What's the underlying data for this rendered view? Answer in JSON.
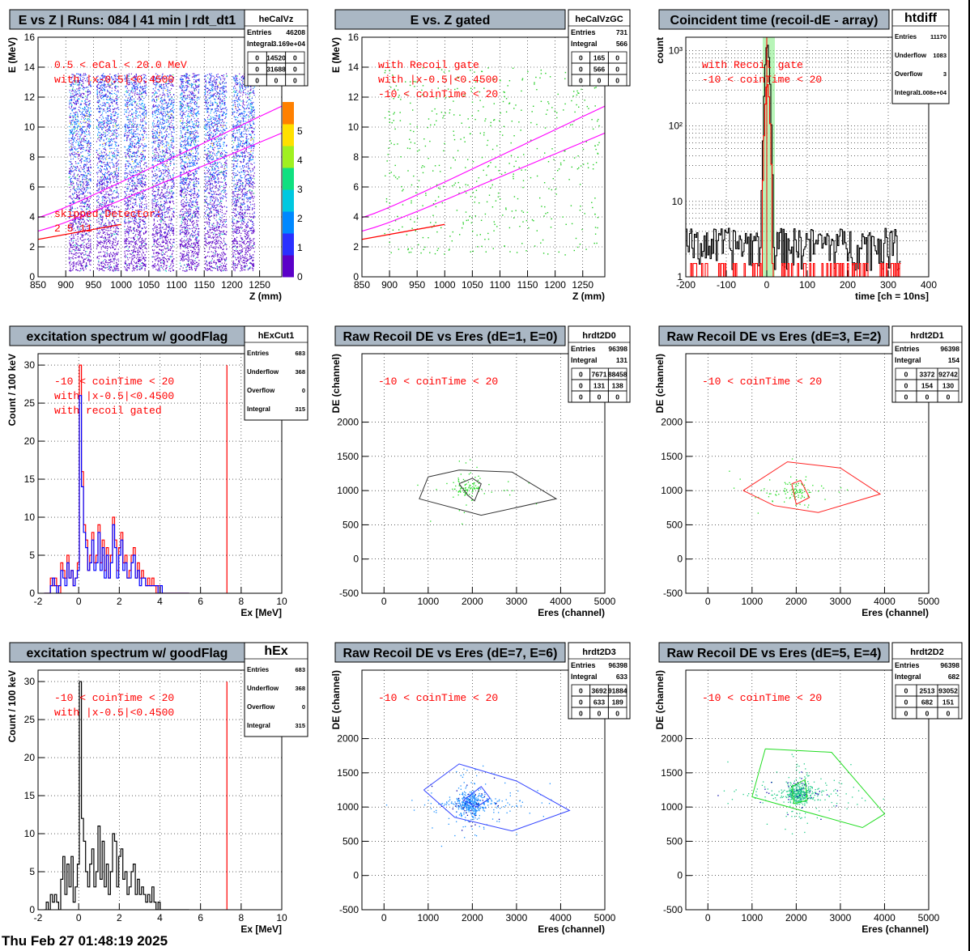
{
  "footer": {
    "timestamp": "Thu Feb 27 01:48:19 2025"
  },
  "colors": {
    "title_bg": "#aab7c4",
    "stat_bg": "#ffffff",
    "red": "#ff0000",
    "blue": "#0000ff",
    "green": "#00cc00",
    "magenta": "#ff00ff",
    "black": "#000000",
    "coin_band": "#88ee88"
  },
  "panels": [
    {
      "title": "E vs Z | Runs: 084 | 41 min | rdt_dt1",
      "stats": {
        "name": "heCalVz",
        "rows": [
          [
            "Entries",
            "46208"
          ],
          [
            "Integral",
            "3.169e+04"
          ]
        ],
        "grid": [
          [
            "0",
            "14520",
            "0"
          ],
          [
            "0",
            "31688",
            "0"
          ],
          [
            "0",
            "0",
            "0"
          ]
        ]
      },
      "annotations": [
        "0.5 < eCal < 20.0 MeV",
        "with |x-0.5|<0.4500",
        "skipped Detector:",
        "2   5   11"
      ],
      "chart_data": {
        "type": "heatmap",
        "xlabel": "Z (mm)",
        "ylabel": "E (MeV)",
        "xlim": [
          850,
          1290
        ],
        "ylim": [
          0,
          16
        ],
        "xticks": [
          850,
          900,
          950,
          1000,
          1050,
          1100,
          1150,
          1200,
          1250
        ],
        "yticks": [
          0,
          2,
          4,
          6,
          8,
          10,
          12,
          14,
          16
        ],
        "zlim": [
          0,
          6
        ],
        "zticks": [
          0,
          1,
          2,
          3,
          4,
          5
        ],
        "bands_z": [
          [
            905,
            945
          ],
          [
            955,
            995
          ],
          [
            1005,
            1045
          ],
          [
            1055,
            1095
          ],
          [
            1105,
            1140
          ],
          [
            1150,
            1190
          ],
          [
            1200,
            1240
          ]
        ],
        "kinematic_lines": [
          [
            [
              850,
              3.7
            ],
            [
              1290,
              11.4
            ]
          ],
          [
            [
              850,
              2.8
            ],
            [
              1290,
              9.6
            ]
          ]
        ],
        "red_line": [
          [
            850,
            2.5
          ],
          [
            1000,
            3.5
          ]
        ]
      }
    },
    {
      "title": "E vs. Z gated",
      "stats": {
        "name": "heCalVzGC",
        "rows": [
          [
            "Entries",
            "731"
          ],
          [
            "Integral",
            "566"
          ]
        ],
        "grid": [
          [
            "0",
            "165",
            "0"
          ],
          [
            "0",
            "566",
            "0"
          ],
          [
            "0",
            "0",
            "0"
          ]
        ]
      },
      "annotations": [
        "with Recoil gate",
        "with |x-0.5|<0.4500",
        "-10 < coinTime < 20"
      ],
      "chart_data": {
        "type": "scatter",
        "xlabel": "Z (mm)",
        "ylabel": "E (MeV)",
        "xlim": [
          850,
          1290
        ],
        "ylim": [
          0,
          16
        ],
        "xticks": [
          850,
          900,
          950,
          1000,
          1050,
          1100,
          1150,
          1200,
          1250
        ],
        "yticks": [
          0,
          2,
          4,
          6,
          8,
          10,
          12,
          14,
          16
        ],
        "kinematic_lines": [
          [
            [
              850,
              3.7
            ],
            [
              1290,
              11.4
            ]
          ],
          [
            [
              850,
              2.8
            ],
            [
              1290,
              9.6
            ]
          ]
        ],
        "red_line": [
          [
            850,
            2.5
          ],
          [
            1000,
            3.5
          ]
        ]
      }
    },
    {
      "title": "Coincident time (recoil-dE - array)",
      "stats": {
        "name": "htdiff",
        "rows": [
          [
            "Entries",
            "11170"
          ],
          [
            "Underflow",
            "1083"
          ],
          [
            "Overflow",
            "3"
          ],
          [
            "Integral",
            "1.008e+04"
          ]
        ],
        "grid": []
      },
      "annotations": [
        "with Recoil gate",
        "-10 < coinTime < 20"
      ],
      "chart_data": {
        "type": "line",
        "xlabel": "time [ch = 10ns]",
        "ylabel": "count",
        "xlim": [
          -200,
          400
        ],
        "ylim": [
          1,
          1500
        ],
        "log_y": true,
        "xticks": [
          -200,
          -100,
          0,
          100,
          200,
          300,
          400
        ],
        "ytick_labels": [
          "1",
          "10",
          "10²",
          "10³"
        ],
        "gate": [
          -10,
          20
        ]
      }
    },
    {
      "title": "excitation spectrum w/ goodFlag",
      "stats": {
        "name": "hExCut1",
        "rows": [
          [
            "Entries",
            "683"
          ],
          [
            "Underflow",
            "368"
          ],
          [
            "Overflow",
            "0"
          ],
          [
            "Integral",
            "315"
          ]
        ],
        "grid": []
      },
      "annotations": [
        "-10 < coinTime < 20",
        "with |x-0.5|<0.4500",
        "with recoil gated"
      ],
      "chart_data": {
        "type": "bar",
        "xlabel": "Ex [MeV]",
        "ylabel": "Count / 100 keV",
        "xlim": [
          -2,
          10
        ],
        "ylim": [
          0,
          31.5
        ],
        "xticks": [
          -2,
          0,
          2,
          4,
          6,
          8,
          10
        ],
        "yticks": [
          0,
          5,
          10,
          15,
          20,
          25,
          30
        ],
        "marker_x": 7.3,
        "series": [
          {
            "values": [
              0,
              0,
              0,
              2,
              1,
              2,
              1,
              0,
              4,
              3,
              2,
              5,
              2,
              3,
              1,
              2,
              4,
              30,
              16,
              9,
              7,
              3,
              5,
              8,
              4,
              5,
              9,
              4,
              7,
              3,
              6,
              2,
              5,
              10,
              7,
              3,
              6,
              8,
              4,
              5,
              2,
              3,
              5,
              6,
              2,
              4,
              2,
              3,
              2,
              1,
              2,
              1,
              2,
              1,
              0,
              1,
              0,
              0,
              0,
              0,
              0,
              0,
              0,
              0,
              0,
              0,
              0,
              0,
              0,
              0
            ]
          },
          {
            "values": [
              0,
              0,
              0,
              1,
              2,
              1,
              0,
              1,
              3,
              2,
              1,
              4,
              2,
              3,
              1,
              2,
              3,
              26,
              14,
              8,
              6,
              3,
              4,
              7,
              3,
              4,
              8,
              3,
              6,
              2,
              5,
              2,
              4,
              9,
              6,
              2,
              5,
              7,
              3,
              4,
              2,
              2,
              4,
              5,
              2,
              3,
              1,
              2,
              2,
              1,
              1,
              1,
              1,
              1,
              1,
              0,
              1,
              0,
              0,
              0,
              0,
              0,
              0,
              0,
              0,
              0,
              0,
              0,
              0,
              0
            ]
          }
        ]
      }
    },
    {
      "title": "Raw Recoil DE vs Eres (dE=1, E=0)",
      "stats": {
        "name": "hrdt2D0",
        "rows": [
          [
            "Entries",
            "96398"
          ],
          [
            "Integral",
            "131"
          ]
        ],
        "grid": [
          [
            "0",
            "7671",
            "88458"
          ],
          [
            "0",
            "131",
            "138"
          ],
          [
            "0",
            "0",
            "0"
          ]
        ]
      },
      "annotations": [
        "-10 < coinTime < 20"
      ],
      "chart_data": {
        "type": "scatter",
        "xlabel": "Eres (channel)",
        "ylabel": "DE (channel)",
        "xlim": [
          -500,
          5000
        ],
        "ylim": [
          -500,
          3000
        ],
        "xticks": [
          0,
          1000,
          2000,
          3000,
          4000,
          5000
        ],
        "yticks": [
          -500,
          0,
          500,
          1000,
          1500,
          2000
        ],
        "center": [
          1900,
          1050
        ],
        "outer_cut": [
          [
            1000,
            1200
          ],
          [
            1700,
            1300
          ],
          [
            2900,
            1270
          ],
          [
            3900,
            880
          ],
          [
            2200,
            640
          ],
          [
            800,
            880
          ]
        ],
        "inner_cut": [
          [
            1700,
            1100
          ],
          [
            2000,
            1180
          ],
          [
            2200,
            1100
          ],
          [
            2050,
            850
          ],
          [
            1900,
            930
          ]
        ]
      }
    },
    {
      "title": "Raw Recoil DE vs Eres (dE=3, E=2)",
      "stats": {
        "name": "hrdt2D1",
        "rows": [
          [
            "Entries",
            "96398"
          ],
          [
            "Integral",
            "154"
          ]
        ],
        "grid": [
          [
            "0",
            "3372",
            "92742"
          ],
          [
            "0",
            "154",
            "130"
          ],
          [
            "0",
            "0",
            "0"
          ]
        ]
      },
      "annotations": [
        "-10 < coinTime < 20"
      ],
      "chart_data": {
        "type": "scatter",
        "xlabel": "Eres (channel)",
        "ylabel": "DE (channel)",
        "xlim": [
          -500,
          5000
        ],
        "ylim": [
          -500,
          3000
        ],
        "xticks": [
          0,
          1000,
          2000,
          3000,
          4000,
          5000
        ],
        "yticks": [
          -500,
          0,
          500,
          1000,
          1500,
          2000
        ],
        "center": [
          2000,
          1000
        ],
        "outer_cut": [
          [
            800,
            1000
          ],
          [
            1800,
            1420
          ],
          [
            3000,
            1330
          ],
          [
            3900,
            950
          ],
          [
            2500,
            680
          ],
          [
            1500,
            780
          ]
        ],
        "inner_cut": [
          [
            1900,
            1100
          ],
          [
            2100,
            1150
          ],
          [
            2300,
            900
          ],
          [
            2000,
            800
          ]
        ]
      }
    },
    {
      "title": "excitation spectrum w/ goodFlag",
      "stats": {
        "name": "hEx",
        "rows": [
          [
            "Entries",
            "683"
          ],
          [
            "Underflow",
            "368"
          ],
          [
            "Overflow",
            "0"
          ],
          [
            "Integral",
            "315"
          ]
        ],
        "grid": []
      },
      "annotations": [
        "-10 < coinTime < 20",
        "with |x-0.5|<0.4500"
      ],
      "chart_data": {
        "type": "bar",
        "xlabel": "Ex [MeV]",
        "ylabel": "Count / 100 keV",
        "xlim": [
          -2,
          10
        ],
        "ylim": [
          0,
          31.5
        ],
        "xticks": [
          -2,
          0,
          2,
          4,
          6,
          8,
          10
        ],
        "yticks": [
          0,
          5,
          10,
          15,
          20,
          25,
          30
        ],
        "marker_x": 7.3,
        "series": [
          {
            "values": [
              0,
              1,
              0,
              2,
              1,
              2,
              1,
              0,
              4,
              7,
              2,
              6,
              3,
              7,
              1,
              3,
              6,
              30,
              12,
              9,
              5,
              3,
              6,
              8,
              3,
              5,
              11,
              4,
              9,
              3,
              6,
              2,
              5,
              10,
              9,
              3,
              7,
              8,
              4,
              5,
              2,
              3,
              5,
              6,
              2,
              4,
              2,
              3,
              2,
              1,
              2,
              1,
              3,
              1,
              0,
              1,
              0,
              0,
              0,
              0,
              0,
              0,
              0,
              0,
              0,
              0,
              0,
              0,
              0,
              0
            ]
          }
        ]
      }
    },
    {
      "title": "Raw Recoil DE vs Eres (dE=7, E=6)",
      "stats": {
        "name": "hrdt2D3",
        "rows": [
          [
            "Entries",
            "96398"
          ],
          [
            "Integral",
            "633"
          ]
        ],
        "grid": [
          [
            "0",
            "3692",
            "91884"
          ],
          [
            "0",
            "633",
            "189"
          ],
          [
            "0",
            "0",
            "0"
          ]
        ]
      },
      "annotations": [
        "-10 < coinTime < 20"
      ],
      "chart_data": {
        "type": "scatter",
        "xlabel": "Eres (channel)",
        "ylabel": "DE (channel)",
        "xlim": [
          -500,
          5000
        ],
        "ylim": [
          -500,
          3000
        ],
        "xticks": [
          0,
          1000,
          2000,
          3000,
          4000,
          5000
        ],
        "yticks": [
          -500,
          0,
          500,
          1000,
          1500,
          2000
        ],
        "center": [
          1950,
          1050
        ],
        "outer_cut": [
          [
            900,
            1250
          ],
          [
            1700,
            1630
          ],
          [
            3000,
            1380
          ],
          [
            4200,
            950
          ],
          [
            2900,
            650
          ],
          [
            1600,
            850
          ]
        ],
        "inner_cut": [
          [
            1800,
            1100
          ],
          [
            2200,
            1300
          ],
          [
            2400,
            1130
          ],
          [
            2100,
            1000
          ]
        ]
      }
    },
    {
      "title": "Raw Recoil DE vs Eres (dE=5, E=4)",
      "stats": {
        "name": "hrdt2D2",
        "rows": [
          [
            "Entries",
            "96398"
          ],
          [
            "Integral",
            "682"
          ]
        ],
        "grid": [
          [
            "0",
            "2513",
            "93052"
          ],
          [
            "0",
            "682",
            "151"
          ],
          [
            "0",
            "0",
            "0"
          ]
        ]
      },
      "annotations": [
        "-10 < coinTime < 20"
      ],
      "chart_data": {
        "type": "scatter",
        "xlabel": "Eres (channel)",
        "ylabel": "DE (channel)",
        "xlim": [
          -500,
          5000
        ],
        "ylim": [
          -500,
          3000
        ],
        "xticks": [
          0,
          1000,
          2000,
          3000,
          4000,
          5000
        ],
        "yticks": [
          -500,
          0,
          500,
          1000,
          1500,
          2000
        ],
        "center": [
          2050,
          1200
        ],
        "outer_cut": [
          [
            1300,
            1850
          ],
          [
            2800,
            1800
          ],
          [
            4000,
            900
          ],
          [
            3500,
            700
          ],
          [
            1000,
            1150
          ]
        ],
        "inner_cut": [
          [
            1900,
            1300
          ],
          [
            2200,
            1400
          ],
          [
            2250,
            1100
          ],
          [
            1950,
            1050
          ]
        ]
      }
    }
  ]
}
